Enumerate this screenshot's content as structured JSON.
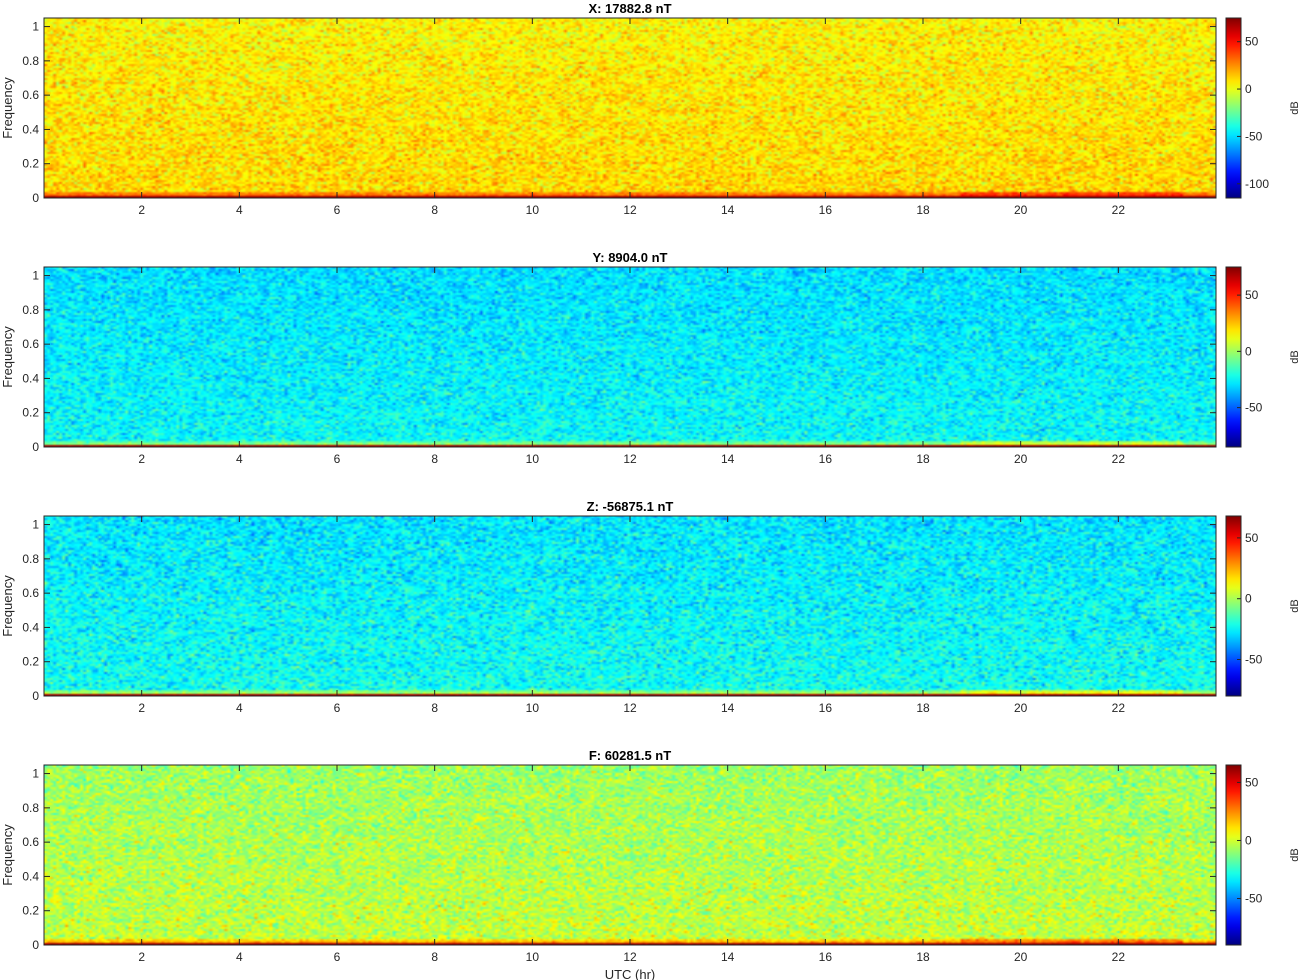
{
  "chart_data": [
    {
      "type": "heatmap",
      "title": "X: 17882.8 nT",
      "xlabel": "",
      "ylabel": "Frequency",
      "xlim": [
        0,
        24
      ],
      "ylim": [
        0,
        1.05
      ],
      "xticks": [
        2,
        4,
        6,
        8,
        10,
        12,
        14,
        16,
        18,
        20,
        22
      ],
      "yticks": [
        0,
        0.2,
        0.4,
        0.6,
        0.8,
        1
      ],
      "colorbar": {
        "label": "dB",
        "range": [
          -115,
          75
        ],
        "ticks": [
          50,
          0,
          -50,
          -100
        ]
      },
      "background_level_db": 5,
      "noise_db": 12
    },
    {
      "type": "heatmap",
      "title": "Y: 8904.0 nT",
      "xlabel": "",
      "ylabel": "Frequency",
      "xlim": [
        0,
        24
      ],
      "ylim": [
        0,
        1.05
      ],
      "xticks": [
        2,
        4,
        6,
        8,
        10,
        12,
        14,
        16,
        18,
        20,
        22
      ],
      "yticks": [
        0,
        0.2,
        0.4,
        0.6,
        0.8,
        1
      ],
      "colorbar": {
        "label": "dB",
        "range": [
          -85,
          75
        ],
        "ticks": [
          50,
          0,
          -50
        ]
      },
      "background_level_db": -30,
      "noise_db": 10
    },
    {
      "type": "heatmap",
      "title": "Z: -56875.1 nT",
      "xlabel": "",
      "ylabel": "Frequency",
      "xlim": [
        0,
        24
      ],
      "ylim": [
        0,
        1.05
      ],
      "xticks": [
        2,
        4,
        6,
        8,
        10,
        12,
        14,
        16,
        18,
        20,
        22
      ],
      "yticks": [
        0,
        0.2,
        0.4,
        0.6,
        0.8,
        1
      ],
      "colorbar": {
        "label": "dB",
        "range": [
          -80,
          68
        ],
        "ticks": [
          50,
          0,
          -50
        ]
      },
      "background_level_db": -28,
      "noise_db": 10
    },
    {
      "type": "heatmap",
      "title": "F: 60281.5 nT",
      "xlabel": "UTC (hr)",
      "ylabel": "Frequency",
      "xlim": [
        0,
        24
      ],
      "ylim": [
        0,
        1.05
      ],
      "xticks": [
        2,
        4,
        6,
        8,
        10,
        12,
        14,
        16,
        18,
        20,
        22
      ],
      "yticks": [
        0,
        0.2,
        0.4,
        0.6,
        0.8,
        1
      ],
      "colorbar": {
        "label": "dB",
        "range": [
          -90,
          65
        ],
        "ticks": [
          50,
          0,
          -50
        ]
      },
      "background_level_db": -8,
      "noise_db": 11
    }
  ]
}
